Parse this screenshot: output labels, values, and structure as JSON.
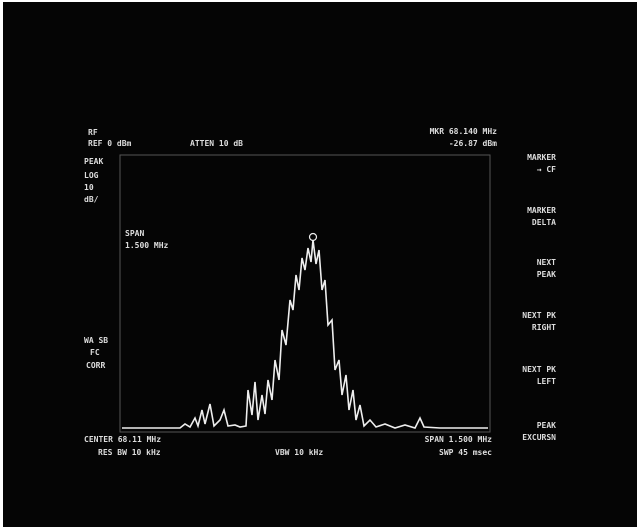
{
  "header": {
    "rf_label": "RF",
    "ref_level": "REF 0 dBm",
    "atten": "ATTEN 10 dB",
    "marker_freq": "MKR 68.140 MHz",
    "marker_level": "-26.87 dBm"
  },
  "left_panel": {
    "detector": "PEAK",
    "scale": "LOG",
    "scale_value": "10",
    "scale_unit": "dB/",
    "sweep": "WA SB",
    "trigger": "FC",
    "correction": "CORR"
  },
  "screen_annotation": {
    "span_label": "SPAN",
    "span_value": "1.500 MHz"
  },
  "footer": {
    "center": "CENTER 68.11 MHz",
    "span": "SPAN 1.500 MHz",
    "res_bw": "RES BW 10 kHz",
    "vbw": "VBW 10 kHz",
    "sweep_time": "SWP 45 msec"
  },
  "softkeys": [
    [
      "MARKER",
      "→ CF"
    ],
    [
      "MARKER",
      "DELTA"
    ],
    [
      "NEXT",
      "PEAK"
    ],
    [
      "NEXT PK",
      "RIGHT"
    ],
    [
      "NEXT PK",
      "LEFT"
    ],
    [
      "PEAK",
      "EXCURSN"
    ]
  ]
}
